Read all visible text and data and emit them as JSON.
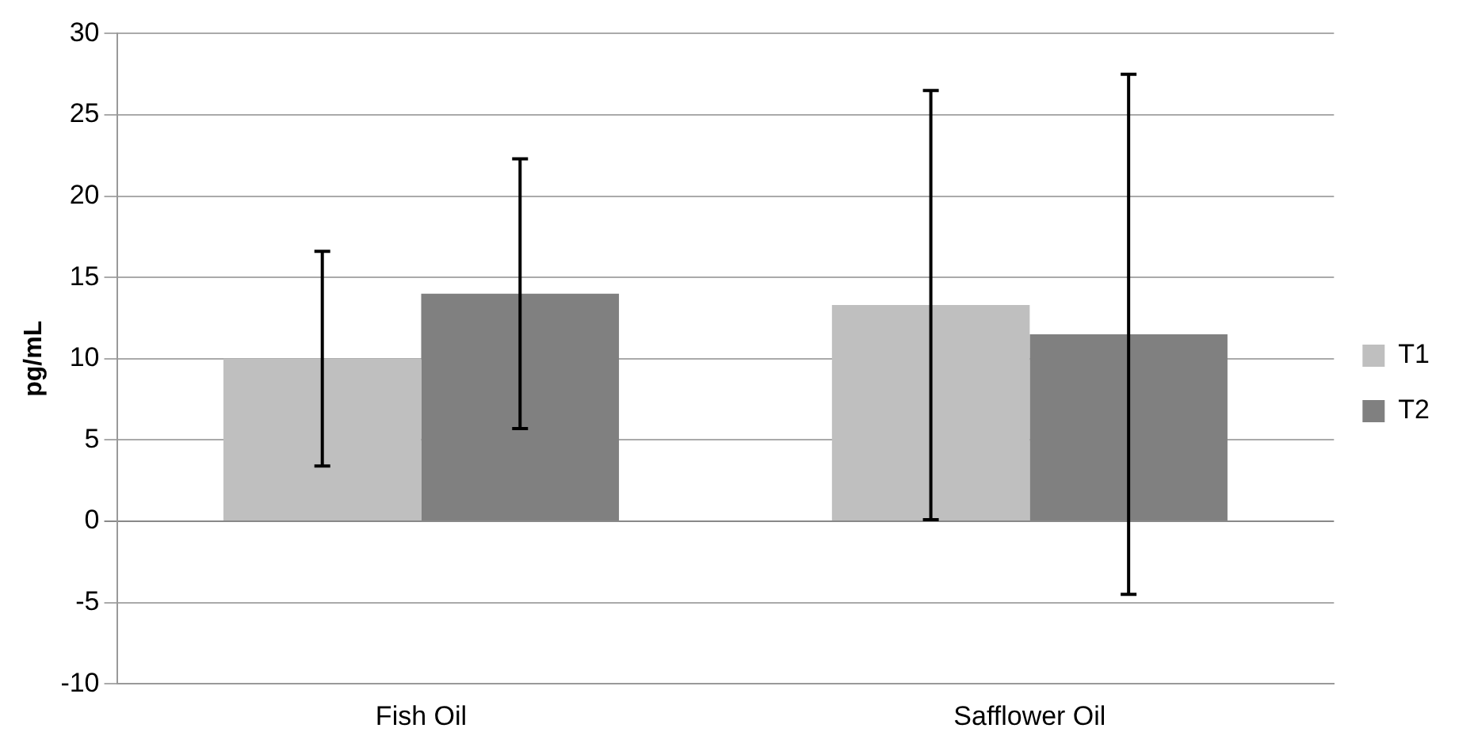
{
  "chart_data": {
    "type": "bar",
    "ylabel": "pg/mL",
    "categories": [
      "Fish Oil",
      "Safflower Oil"
    ],
    "series": [
      {
        "name": "T1",
        "color": "#bfbfbf",
        "values": [
          10,
          13.3
        ],
        "errors": [
          6.6,
          13.2
        ]
      },
      {
        "name": "T2",
        "color": "#808080",
        "values": [
          14,
          11.5
        ],
        "errors": [
          8.3,
          16
        ]
      }
    ],
    "ylim": [
      -10,
      30
    ],
    "yticks": [
      -10,
      -5,
      0,
      5,
      10,
      15,
      20,
      25,
      30
    ],
    "grid": "y",
    "legend": "right"
  }
}
